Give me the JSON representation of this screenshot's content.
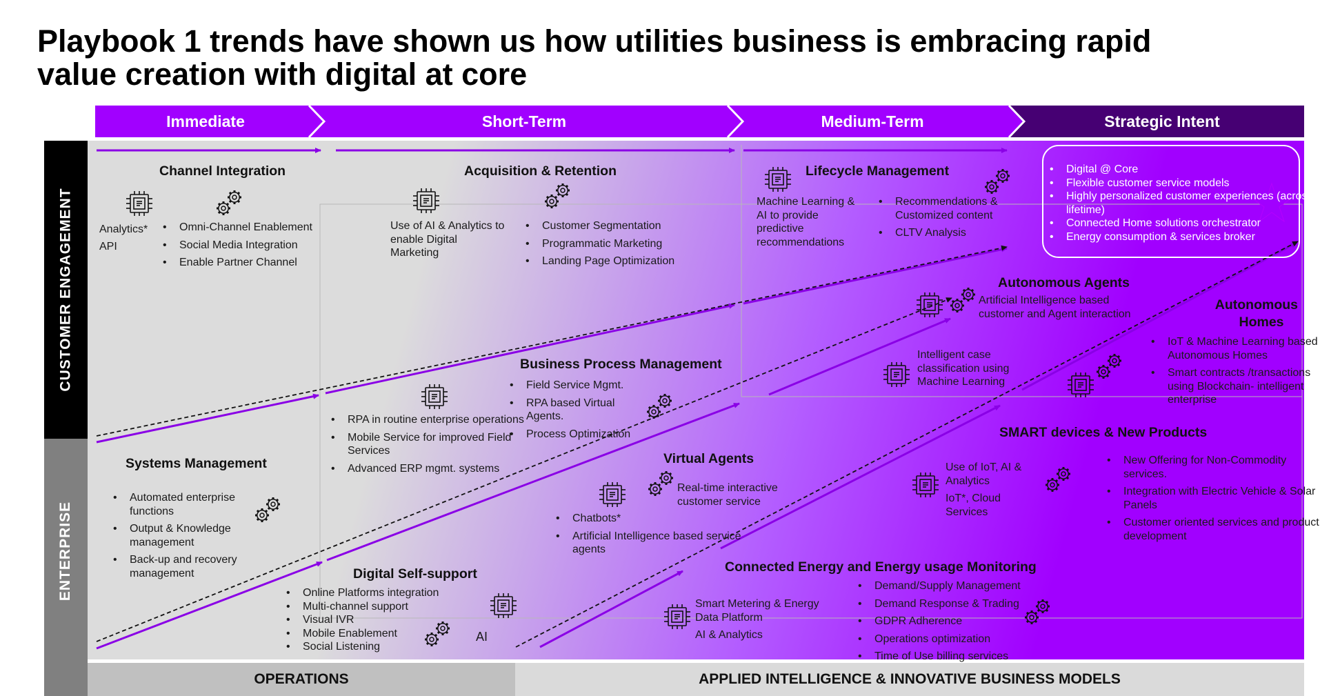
{
  "title": {
    "line1": "Playbook 1 trends have shown us how utilities business is embracing rapid",
    "line2": "value creation with digital at  core"
  },
  "phases": [
    "Immediate",
    "Short-Term",
    "Medium-Term",
    "Strategic Intent"
  ],
  "side_labels": {
    "top": "CUSTOMER ENGAGEMENT",
    "bottom": "ENTERPRISE"
  },
  "footer": {
    "left": "OPERATIONS",
    "right": "APPLIED INTELLIGENCE & INNOVATIVE BUSINESS MODELS"
  },
  "colors": {
    "accent": "#a100ff",
    "dark_purple": "#460073",
    "band_black": "#000000",
    "band_gray": "#808080",
    "footer_gray": "#c8c8c8"
  },
  "blocks": {
    "channel_integration": {
      "title": "Channel Integration",
      "left": [
        "Analytics*",
        "API"
      ],
      "bullets": [
        "Omni-Channel Enablement",
        "Social Media Integration",
        "Enable Partner Channel"
      ]
    },
    "acquisition_retention": {
      "title": "Acquisition & Retention",
      "left": [
        "Use of AI & Analytics to",
        "enable Digital",
        "Marketing"
      ],
      "bullets": [
        "Customer Segmentation",
        "Programmatic Marketing",
        "Landing Page Optimization"
      ]
    },
    "lifecycle_management": {
      "title": "Lifecycle Management",
      "left": [
        "Machine Learning &",
        "AI to provide",
        "predictive",
        "recommendations"
      ],
      "bullets": [
        "Recommendations & Customized content",
        "CLTV Analysis"
      ]
    },
    "strategic_intent": {
      "bullets": [
        "Digital @ Core",
        "Flexible customer service models",
        "Highly personalized customer experiences (across lifetime)",
        "Connected Home solutions orchestrator",
        "Energy consumption & services broker"
      ]
    },
    "autonomous_agents": {
      "title": "Autonomous Agents",
      "text": [
        "Artificial Intelligence based",
        "customer and Agent interaction"
      ]
    },
    "autonomous_homes": {
      "title1": "Autonomous",
      "title2": "Homes",
      "bullets": [
        "IoT & Machine Learning based Autonomous Homes",
        "Smart contracts /transactions using Blockchain- intelligent enterprise"
      ]
    },
    "intelligent_case": {
      "text": [
        "Intelligent case",
        "classification using",
        "Machine Learning"
      ]
    },
    "business_process_management": {
      "title": "Business Process Management",
      "bullets": [
        "Field Service Mgmt.",
        "RPA based Virtual Agents.",
        "Process Optimization"
      ]
    },
    "rpa_block": {
      "bullets": [
        "RPA in routine enterprise operations",
        "Mobile Service for improved Field Services",
        "Advanced ERP mgmt. systems"
      ]
    },
    "systems_management": {
      "title": "Systems Management",
      "bullets": [
        "Automated enterprise functions",
        "Output & Knowledge management",
        "Back-up and recovery management"
      ]
    },
    "virtual_agents": {
      "title": "Virtual Agents",
      "text": [
        "Real-time interactive",
        "customer service"
      ],
      "bullets": [
        "Chatbots*",
        "Artificial Intelligence based service agents"
      ]
    },
    "digital_self_support": {
      "title": "Digital Self-support",
      "bullets": [
        "Online Platforms integration",
        "Multi-channel support",
        "Visual IVR",
        "Mobile Enablement",
        "Social Listening"
      ],
      "ai_label": "AI"
    },
    "smart_devices": {
      "title": "SMART devices & New Products",
      "left": [
        "Use of IoT, AI &",
        "Analytics",
        "IoT*, Cloud",
        "Services"
      ],
      "bullets": [
        "New Offering for Non-Commodity services.",
        "Integration with Electric Vehicle & Solar Panels",
        "Customer oriented services and product development"
      ]
    },
    "connected_energy": {
      "title": "Connected Energy and  Energy usage Monitoring",
      "left": [
        "Smart Metering & Energy",
        "Data Platform",
        "AI & Analytics"
      ],
      "bullets": [
        "Demand/Supply Management",
        "Demand Response & Trading",
        "GDPR Adherence",
        "Operations optimization",
        "Time of Use billing services"
      ]
    }
  }
}
